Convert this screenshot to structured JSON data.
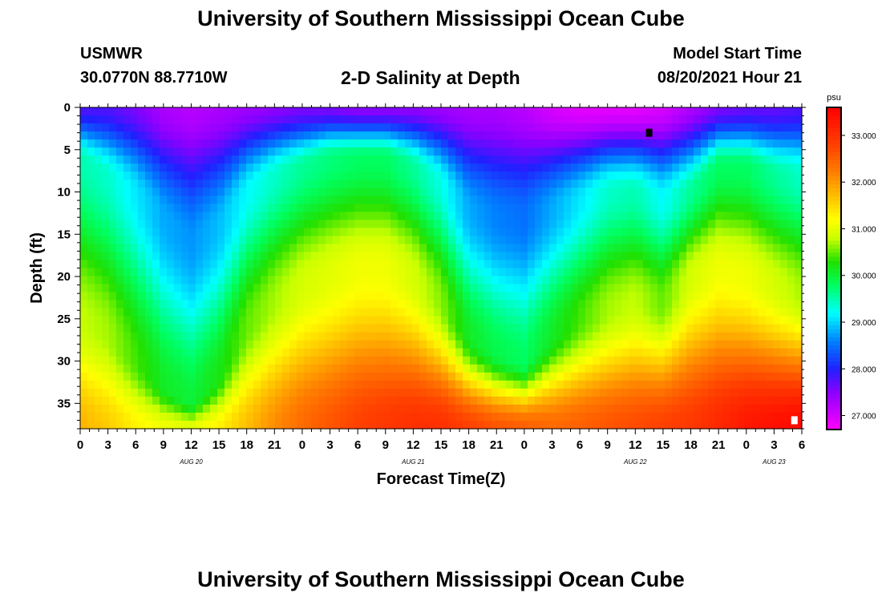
{
  "header": {
    "title": "University of Southern Mississippi Ocean Cube",
    "station_id": "USMWR",
    "station_coords": "30.0770N  88.7710W",
    "plot_title": "2-D Salinity at Depth",
    "model_start_label": "Model Start Time",
    "model_start_value": "08/20/2021 Hour 21"
  },
  "footer": {
    "title": "University of Southern Mississippi Ocean Cube"
  },
  "chart_data": {
    "type": "heatmap",
    "title": "2-D Salinity at Depth",
    "xlabel": "Forecast Time(Z)",
    "ylabel": "Depth (ft)",
    "units": "psu",
    "x_tick_labels": [
      "0",
      "3",
      "6",
      "9",
      "12",
      "15",
      "18",
      "21",
      "0",
      "3",
      "6",
      "9",
      "12",
      "15",
      "18",
      "21",
      "0",
      "3",
      "6",
      "9",
      "12",
      "15",
      "18",
      "21",
      "0",
      "3",
      "6"
    ],
    "x_range_hours": [
      0,
      78
    ],
    "date_labels": [
      {
        "label": "AUG 20",
        "hour": 12
      },
      {
        "label": "AUG 21",
        "hour": 36
      },
      {
        "label": "AUG 22",
        "hour": 60
      },
      {
        "label": "AUG 23",
        "hour": 75
      }
    ],
    "y_ticks": [
      0,
      5,
      10,
      15,
      20,
      25,
      30,
      35
    ],
    "ylim": [
      0,
      38
    ],
    "y_inverted": true,
    "colorbar": {
      "min": 26.7,
      "max": 33.6,
      "tick_labels": [
        "27.000",
        "28.000",
        "29.000",
        "30.000",
        "31.000",
        "32.000",
        "33.000"
      ],
      "stops": [
        {
          "v": 26.7,
          "c": "#ff00ff"
        },
        {
          "v": 27.5,
          "c": "#8c00ff"
        },
        {
          "v": 28.0,
          "c": "#2020ff"
        },
        {
          "v": 28.6,
          "c": "#0080ff"
        },
        {
          "v": 29.2,
          "c": "#00ffff"
        },
        {
          "v": 29.8,
          "c": "#00ff60"
        },
        {
          "v": 30.3,
          "c": "#20e000"
        },
        {
          "v": 30.8,
          "c": "#c8ff00"
        },
        {
          "v": 31.2,
          "c": "#ffff00"
        },
        {
          "v": 31.7,
          "c": "#ffc000"
        },
        {
          "v": 32.2,
          "c": "#ff8000"
        },
        {
          "v": 32.8,
          "c": "#ff4000"
        },
        {
          "v": 33.6,
          "c": "#ff0000"
        }
      ]
    },
    "profile_columns": [
      {
        "hour": 0,
        "surf": 27.8,
        "d1": 6,
        "s1": 29.9,
        "d2": 25,
        "bot": 31.8
      },
      {
        "hour": 3,
        "surf": 27.8,
        "d1": 8,
        "s1": 29.8,
        "d2": 27,
        "bot": 31.6
      },
      {
        "hour": 6,
        "surf": 27.6,
        "d1": 10,
        "s1": 29.5,
        "d2": 30,
        "bot": 31.3
      },
      {
        "hour": 9,
        "surf": 27.3,
        "d1": 13,
        "s1": 29.2,
        "d2": 33,
        "bot": 31.1
      },
      {
        "hour": 12,
        "surf": 27.2,
        "d1": 16,
        "s1": 29.1,
        "d2": 35,
        "bot": 31.0
      },
      {
        "hour": 15,
        "surf": 27.3,
        "d1": 14,
        "s1": 29.3,
        "d2": 32,
        "bot": 31.3
      },
      {
        "hour": 18,
        "surf": 27.4,
        "d1": 10,
        "s1": 29.6,
        "d2": 26,
        "bot": 31.7
      },
      {
        "hour": 21,
        "surf": 27.5,
        "d1": 8,
        "s1": 29.8,
        "d2": 23,
        "bot": 32.1
      },
      {
        "hour": 24,
        "surf": 27.6,
        "d1": 7,
        "s1": 30.0,
        "d2": 21,
        "bot": 32.4
      },
      {
        "hour": 27,
        "surf": 27.6,
        "d1": 6,
        "s1": 30.1,
        "d2": 20,
        "bot": 32.6
      },
      {
        "hour": 30,
        "surf": 27.5,
        "d1": 6,
        "s1": 30.2,
        "d2": 19,
        "bot": 32.8
      },
      {
        "hour": 33,
        "surf": 27.5,
        "d1": 6,
        "s1": 30.2,
        "d2": 19,
        "bot": 32.9
      },
      {
        "hour": 36,
        "surf": 27.5,
        "d1": 7,
        "s1": 30.0,
        "d2": 20,
        "bot": 33.0
      },
      {
        "hour": 39,
        "surf": 27.4,
        "d1": 9,
        "s1": 29.7,
        "d2": 23,
        "bot": 33.0
      },
      {
        "hour": 42,
        "surf": 27.3,
        "d1": 12,
        "s1": 29.2,
        "d2": 27,
        "bot": 32.8
      },
      {
        "hour": 45,
        "surf": 27.3,
        "d1": 13,
        "s1": 29.0,
        "d2": 29,
        "bot": 32.6
      },
      {
        "hour": 48,
        "surf": 27.2,
        "d1": 13,
        "s1": 28.9,
        "d2": 30,
        "bot": 32.5
      },
      {
        "hour": 51,
        "surf": 27.0,
        "d1": 12,
        "s1": 29.2,
        "d2": 27,
        "bot": 32.4
      },
      {
        "hour": 54,
        "surf": 26.9,
        "d1": 11,
        "s1": 29.5,
        "d2": 25,
        "bot": 32.5
      },
      {
        "hour": 57,
        "surf": 26.9,
        "d1": 10,
        "s1": 29.8,
        "d2": 24,
        "bot": 32.6
      },
      {
        "hour": 60,
        "surf": 26.9,
        "d1": 10,
        "s1": 29.9,
        "d2": 23,
        "bot": 32.7
      },
      {
        "hour": 63,
        "surf": 27.0,
        "d1": 11,
        "s1": 29.6,
        "d2": 23,
        "bot": 32.8
      },
      {
        "hour": 66,
        "surf": 27.3,
        "d1": 10,
        "s1": 30.0,
        "d2": 20,
        "bot": 32.9
      },
      {
        "hour": 69,
        "surf": 27.6,
        "d1": 7,
        "s1": 30.2,
        "d2": 19,
        "bot": 33.1
      },
      {
        "hour": 72,
        "surf": 27.7,
        "d1": 7,
        "s1": 30.2,
        "d2": 20,
        "bot": 33.3
      },
      {
        "hour": 75,
        "surf": 27.7,
        "d1": 8,
        "s1": 30.0,
        "d2": 21,
        "bot": 33.4
      },
      {
        "hour": 78,
        "surf": 27.8,
        "d1": 8,
        "s1": 29.8,
        "d2": 22,
        "bot": 33.5
      }
    ],
    "markers": [
      {
        "name": "marker-black",
        "hour": 61.5,
        "depth": 3.0,
        "color": "#000000"
      },
      {
        "name": "marker-white",
        "hour": 77.2,
        "depth": 37.0,
        "color": "#ffffff"
      }
    ]
  }
}
